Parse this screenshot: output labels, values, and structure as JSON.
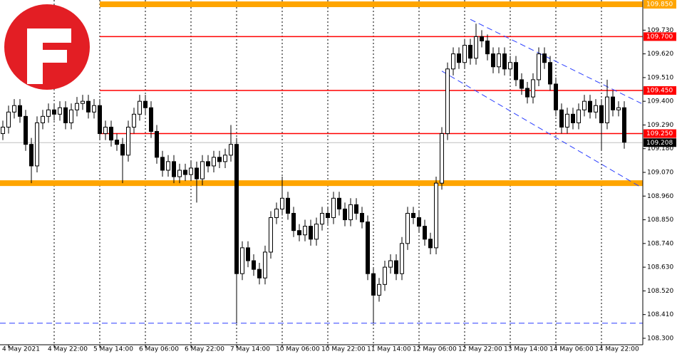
{
  "chart_data": {
    "type": "candlestick",
    "xlim": [
      -0.5,
      112.25
    ],
    "ylim": [
      108.27,
      109.87
    ],
    "yticks": [
      {
        "value": 109.73,
        "label": "109.730"
      },
      {
        "value": 109.62,
        "label": "109.620"
      },
      {
        "value": 109.51,
        "label": "109.510"
      },
      {
        "value": 109.4,
        "label": "109.400"
      },
      {
        "value": 109.29,
        "label": "109.290"
      },
      {
        "value": 109.18,
        "label": "109.180"
      },
      {
        "value": 109.07,
        "label": "109.070"
      },
      {
        "value": 108.96,
        "label": "108.960"
      },
      {
        "value": 108.85,
        "label": "108.850"
      },
      {
        "value": 108.74,
        "label": "108.740"
      },
      {
        "value": 108.63,
        "label": "108.630"
      },
      {
        "value": 108.52,
        "label": "108.520"
      },
      {
        "value": 108.41,
        "label": "108.410"
      },
      {
        "value": 108.3,
        "label": "108.300"
      }
    ],
    "categories": [
      null,
      "4 May 2021",
      null,
      null,
      null,
      null,
      null,
      null,
      null,
      "4 May 22:00",
      null,
      null,
      null,
      null,
      null,
      null,
      null,
      "5 May 14:00",
      null,
      null,
      null,
      null,
      null,
      null,
      null,
      "6 May 06:00",
      null,
      null,
      null,
      null,
      null,
      null,
      null,
      "6 May 22:00",
      null,
      null,
      null,
      null,
      null,
      null,
      null,
      "7 May 14:00",
      null,
      null,
      null,
      null,
      null,
      null,
      null,
      "10 May 06:00",
      null,
      null,
      null,
      null,
      null,
      null,
      null,
      "10 May 22:00",
      null,
      null,
      null,
      null,
      null,
      null,
      null,
      "11 May 14:00",
      null,
      null,
      null,
      null,
      null,
      null,
      null,
      "12 May 06:00",
      null,
      null,
      null,
      null,
      null,
      null,
      null,
      "12 May 22:00",
      null,
      null,
      null,
      null,
      null,
      null,
      null,
      "13 May 14:00",
      null,
      null,
      null,
      null,
      null,
      null,
      null,
      "14 May 06:00",
      null,
      null,
      null,
      null,
      null,
      null,
      null,
      "14 May 22:00",
      null,
      null,
      null,
      null
    ],
    "open": [
      109.25,
      109.28,
      109.35,
      109.38,
      109.33,
      109.2,
      109.1,
      109.3,
      109.33,
      109.36,
      109.34,
      109.37,
      109.3,
      109.36,
      109.39,
      109.4,
      109.35,
      109.38,
      109.25,
      109.28,
      109.22,
      109.2,
      109.15,
      109.28,
      109.34,
      109.4,
      109.37,
      109.26,
      109.14,
      109.08,
      109.12,
      109.05,
      109.08,
      109.06,
      109.09,
      109.04,
      109.12,
      109.1,
      109.14,
      109.12,
      109.15,
      109.2,
      108.6,
      108.72,
      108.66,
      108.62,
      108.58,
      108.7,
      108.86,
      108.9,
      108.95,
      108.88,
      108.8,
      108.78,
      108.82,
      108.76,
      108.83,
      108.88,
      108.86,
      108.95,
      108.9,
      108.85,
      108.92,
      108.88,
      108.84,
      108.6,
      108.5,
      108.55,
      108.63,
      108.66,
      108.6,
      108.74,
      108.88,
      108.86,
      108.82,
      108.76,
      108.72,
      109.02,
      109.25,
      109.55,
      109.62,
      109.58,
      109.66,
      109.6,
      109.7,
      109.68,
      109.62,
      109.56,
      109.62,
      109.55,
      109.58,
      109.5,
      109.46,
      109.42,
      109.5,
      109.62,
      109.58,
      109.48,
      109.36,
      109.28,
      109.34,
      109.3,
      109.36,
      109.4,
      109.35,
      109.38,
      109.3,
      109.42,
      109.36,
      109.37
    ],
    "high": [
      109.31,
      109.38,
      109.41,
      109.41,
      109.36,
      109.23,
      109.33,
      109.36,
      109.39,
      109.39,
      109.4,
      109.4,
      109.39,
      109.42,
      109.43,
      109.43,
      109.41,
      109.41,
      109.31,
      109.31,
      109.25,
      109.23,
      109.31,
      109.37,
      109.43,
      109.43,
      109.4,
      109.29,
      109.17,
      109.15,
      109.15,
      109.11,
      109.11,
      109.12,
      109.12,
      109.15,
      109.15,
      109.17,
      109.17,
      109.18,
      109.29,
      109.23,
      108.75,
      108.75,
      108.69,
      108.65,
      108.73,
      108.89,
      108.93,
      109.05,
      108.98,
      108.91,
      108.83,
      108.85,
      108.85,
      108.86,
      108.91,
      108.91,
      108.98,
      108.98,
      108.93,
      108.95,
      108.95,
      108.91,
      108.87,
      108.63,
      108.58,
      108.66,
      108.69,
      108.69,
      108.77,
      108.91,
      108.91,
      108.89,
      108.85,
      108.79,
      109.05,
      109.28,
      109.58,
      109.65,
      109.65,
      109.69,
      109.69,
      109.76,
      109.73,
      109.71,
      109.65,
      109.65,
      109.65,
      109.61,
      109.61,
      109.53,
      109.49,
      109.53,
      109.65,
      109.65,
      109.61,
      109.51,
      109.39,
      109.37,
      109.37,
      109.39,
      109.43,
      109.43,
      109.41,
      109.41,
      109.5,
      109.45,
      109.4,
      109.4
    ],
    "low": [
      109.22,
      109.25,
      109.32,
      109.3,
      109.17,
      109.02,
      109.07,
      109.27,
      109.3,
      109.31,
      109.31,
      109.27,
      109.27,
      109.33,
      109.36,
      109.32,
      109.32,
      109.22,
      109.22,
      109.19,
      109.17,
      109.02,
      109.12,
      109.25,
      109.31,
      109.34,
      109.23,
      109.11,
      109.05,
      109.05,
      109.02,
      109.02,
      109.03,
      109.03,
      108.93,
      109.01,
      109.07,
      109.07,
      109.09,
      109.09,
      109.12,
      108.37,
      108.57,
      108.63,
      108.59,
      108.55,
      108.55,
      108.67,
      108.83,
      108.87,
      108.85,
      108.77,
      108.75,
      108.75,
      108.73,
      108.73,
      108.8,
      108.83,
      108.83,
      108.87,
      108.82,
      108.82,
      108.85,
      108.81,
      108.57,
      108.37,
      108.47,
      108.52,
      108.6,
      108.57,
      108.57,
      108.71,
      108.83,
      108.79,
      108.73,
      108.69,
      108.69,
      108.99,
      109.22,
      109.52,
      109.55,
      109.55,
      109.57,
      109.57,
      109.65,
      109.59,
      109.53,
      109.53,
      109.52,
      109.52,
      109.47,
      109.43,
      109.39,
      109.39,
      109.47,
      109.55,
      109.45,
      109.33,
      109.25,
      109.25,
      109.27,
      109.27,
      109.33,
      109.32,
      109.32,
      109.17,
      109.27,
      109.33,
      109.33,
      109.18
    ],
    "close": [
      109.28,
      109.35,
      109.38,
      109.33,
      109.2,
      109.1,
      109.3,
      109.33,
      109.36,
      109.34,
      109.37,
      109.3,
      109.36,
      109.39,
      109.4,
      109.35,
      109.38,
      109.25,
      109.28,
      109.22,
      109.2,
      109.15,
      109.28,
      109.34,
      109.4,
      109.37,
      109.26,
      109.14,
      109.08,
      109.12,
      109.05,
      109.08,
      109.06,
      109.09,
      109.04,
      109.12,
      109.1,
      109.14,
      109.12,
      109.15,
      109.2,
      108.6,
      108.72,
      108.66,
      108.62,
      108.58,
      108.7,
      108.86,
      108.9,
      108.95,
      108.88,
      108.8,
      108.78,
      108.82,
      108.76,
      108.83,
      108.88,
      108.86,
      108.95,
      108.9,
      108.85,
      108.92,
      108.88,
      108.84,
      108.6,
      108.5,
      108.55,
      108.63,
      108.66,
      108.6,
      108.74,
      108.88,
      108.86,
      108.82,
      108.76,
      108.72,
      109.02,
      109.25,
      109.55,
      109.62,
      109.58,
      109.66,
      109.6,
      109.7,
      109.68,
      109.62,
      109.56,
      109.62,
      109.55,
      109.58,
      109.5,
      109.46,
      109.42,
      109.5,
      109.62,
      109.58,
      109.48,
      109.36,
      109.28,
      109.34,
      109.3,
      109.36,
      109.4,
      109.35,
      109.38,
      109.3,
      109.42,
      109.36,
      109.37,
      109.21
    ],
    "levels": [
      {
        "value": 109.85,
        "label": "109.850",
        "color": "#ffa500"
      },
      {
        "value": 109.7,
        "label": "109.700",
        "color": "#ff0000"
      },
      {
        "value": 109.45,
        "label": "109.450",
        "color": "#ff0000"
      },
      {
        "value": 109.25,
        "label": "109.250",
        "color": "#ff0000"
      },
      {
        "value": 109.02,
        "color": "#ffa500"
      }
    ],
    "current_price": {
      "value": 109.208,
      "label": "109.208"
    },
    "trendlines": [
      {
        "x": [
          82,
          112
        ],
        "y": [
          109.78,
          109.39
        ],
        "color": "#2b3fff"
      },
      {
        "x": [
          77,
          112
        ],
        "y": [
          109.54,
          109.0
        ],
        "color": "#2b3fff"
      },
      {
        "x": [
          -0.5,
          112.25
        ],
        "y": [
          108.37,
          108.37
        ],
        "color": "#2b3fff"
      }
    ]
  }
}
